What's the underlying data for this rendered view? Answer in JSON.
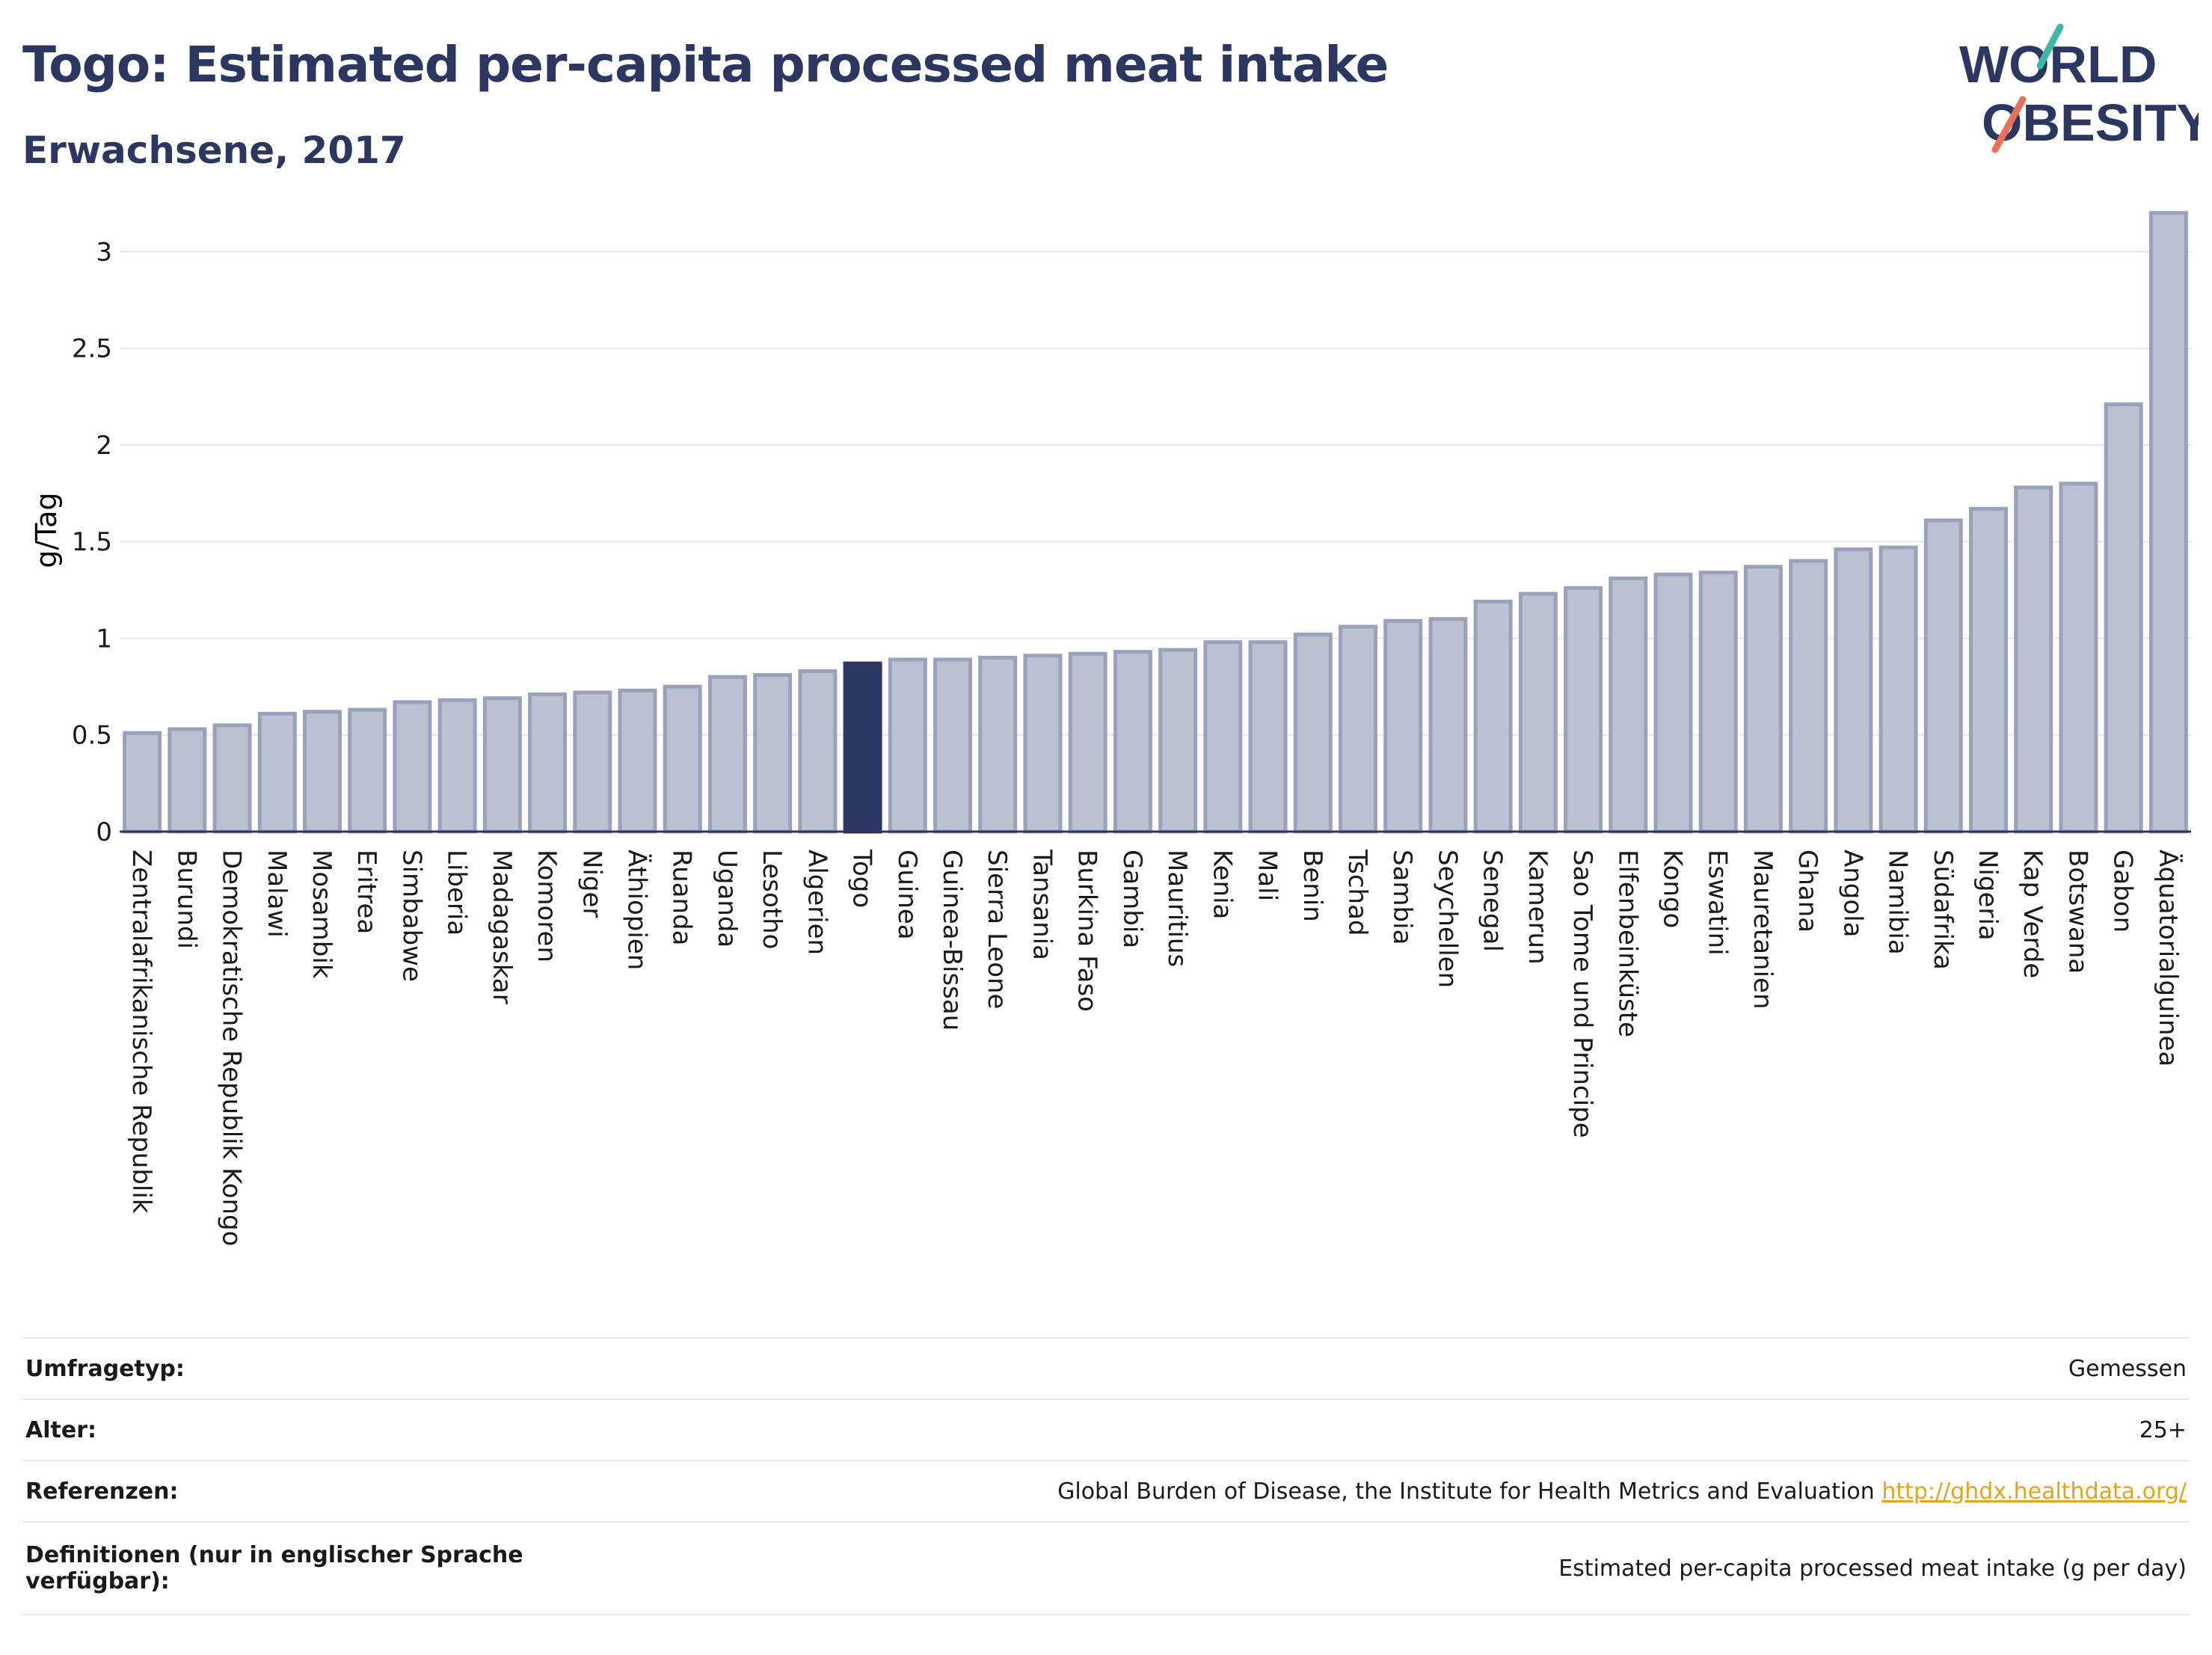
{
  "header": {
    "title": "Togo: Estimated per-capita processed meat intake",
    "subtitle": "Erwachsene, 2017"
  },
  "logo": {
    "line1": "WORLD",
    "line2": "OBESITY",
    "colors": {
      "text": "#2b3661",
      "slash_top": "#3cb8a8",
      "slash_bottom": "#e8705a"
    }
  },
  "colors": {
    "bar_default": "#bcc1d1",
    "bar_border": "#9aa1bb",
    "bar_highlight": "#2b3661",
    "grid": "#e6e7ee",
    "axis": "#2b3661"
  },
  "chart_data": {
    "type": "bar",
    "ylabel": "g/Tag",
    "ylim": [
      0,
      3.35
    ],
    "yticks": [
      0,
      0.5,
      1,
      1.5,
      2,
      2.5,
      3
    ],
    "ytick_labels": [
      "0",
      "0.5",
      "1",
      "1.5",
      "2",
      "2.5",
      "3"
    ],
    "grid": true,
    "highlight": "Togo",
    "categories": [
      "Zentralafrikanische Republik",
      "Burundi",
      "Demokratische Republik Kongo",
      "Malawi",
      "Mosambik",
      "Eritrea",
      "Simbabwe",
      "Liberia",
      "Madagaskar",
      "Komoren",
      "Niger",
      "Äthiopien",
      "Ruanda",
      "Uganda",
      "Lesotho",
      "Algerien",
      "Togo",
      "Guinea",
      "Guinea-Bissau",
      "Sierra Leone",
      "Tansania",
      "Burkina Faso",
      "Gambia",
      "Mauritius",
      "Kenia",
      "Mali",
      "Benin",
      "Tschad",
      "Sambia",
      "Seychellen",
      "Senegal",
      "Kamerun",
      "Sao Tome und Principe",
      "Elfenbeinküste",
      "Kongo",
      "Eswatini",
      "Mauretanien",
      "Ghana",
      "Angola",
      "Namibia",
      "Südafrika",
      "Nigeria",
      "Kap Verde",
      "Botswana",
      "Gabon",
      "Äquatorialguinea"
    ],
    "values": [
      0.51,
      0.53,
      0.55,
      0.61,
      0.62,
      0.63,
      0.67,
      0.68,
      0.69,
      0.71,
      0.72,
      0.73,
      0.75,
      0.8,
      0.81,
      0.83,
      0.87,
      0.89,
      0.89,
      0.9,
      0.91,
      0.92,
      0.93,
      0.94,
      0.98,
      0.98,
      1.02,
      1.06,
      1.09,
      1.1,
      1.19,
      1.23,
      1.26,
      1.31,
      1.33,
      1.34,
      1.37,
      1.4,
      1.46,
      1.47,
      1.61,
      1.67,
      1.78,
      1.8,
      2.21,
      3.2
    ]
  },
  "info": {
    "rows": [
      {
        "label": "Umfragetyp:",
        "value": "Gemessen"
      },
      {
        "label": "Alter:",
        "value": "25+"
      },
      {
        "label": "Referenzen:",
        "value": "Global Burden of Disease, the Institute for Health Metrics and Evaluation",
        "link": "http://ghdx.healthdata.org/"
      },
      {
        "label": "Definitionen (nur in englischer Sprache verfügbar):",
        "value": "Estimated per-capita processed meat intake (g per day)"
      }
    ]
  }
}
